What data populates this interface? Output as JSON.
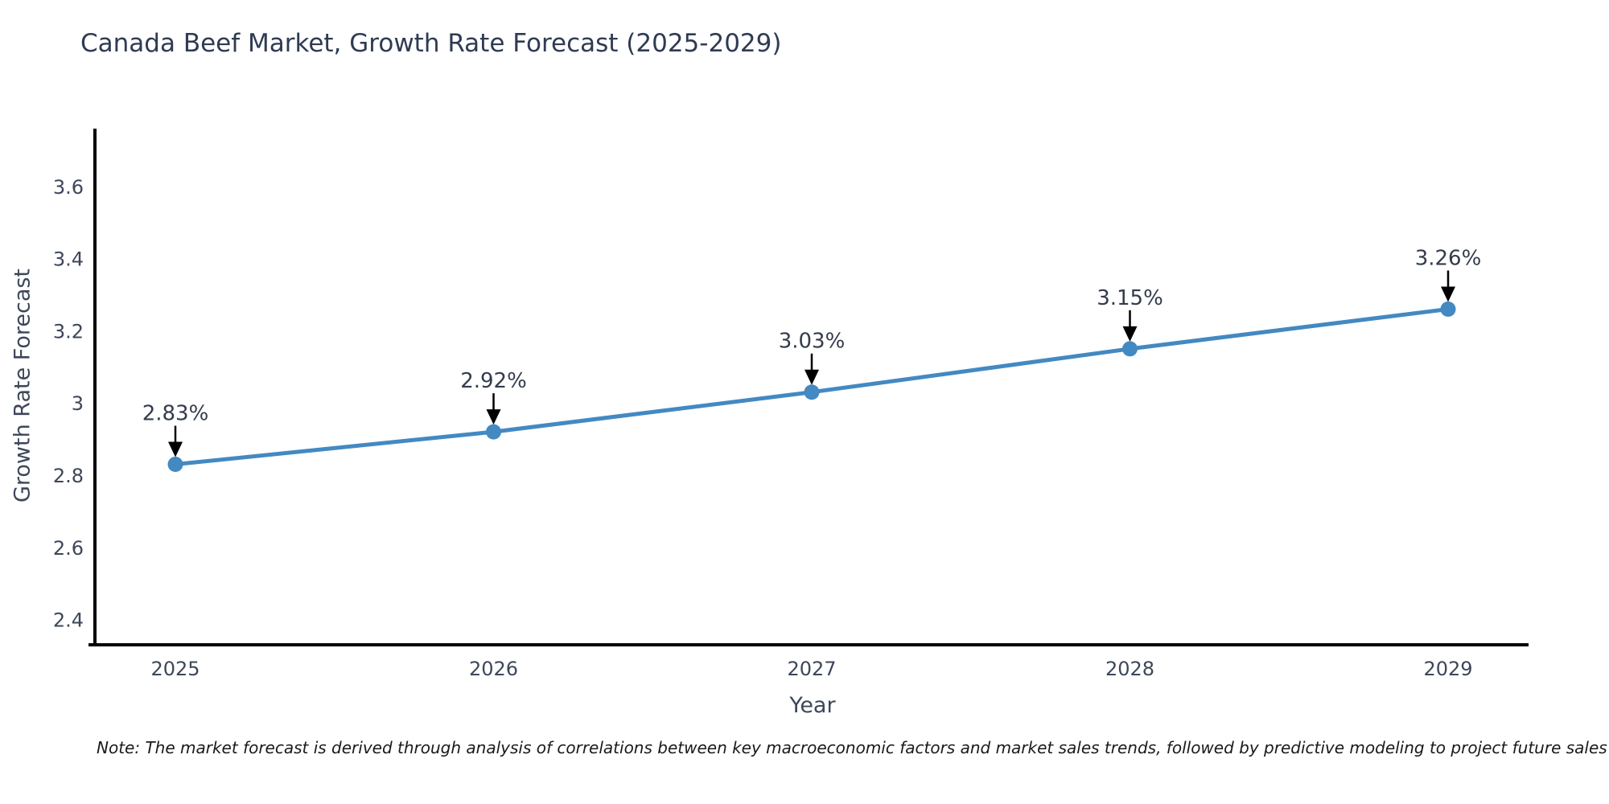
{
  "header": {
    "title": "Canada Beef Market, Growth Rate Forecast (2025-2029)"
  },
  "footer": {
    "note": "Note: The market forecast is derived through analysis of correlations between key macroeconomic factors and market sales trends, followed by predictive modeling to project future sales"
  },
  "chart_data": {
    "type": "line",
    "title": "Canada Beef Market, Growth Rate Forecast (2025-2029)",
    "xlabel": "Year",
    "ylabel": "Growth Rate Forecast",
    "categories": [
      "2025",
      "2026",
      "2027",
      "2028",
      "2029"
    ],
    "series": [
      {
        "name": "Growth Rate Forecast",
        "values": [
          2.83,
          2.92,
          3.03,
          3.15,
          3.26
        ],
        "point_labels": [
          "2.83%",
          "2.92%",
          "3.03%",
          "3.15%",
          "3.26%"
        ]
      }
    ],
    "yticks": [
      2.4,
      2.6,
      2.8,
      3,
      3.2,
      3.4,
      3.6
    ],
    "ylim": [
      2.33,
      3.76
    ],
    "grid": false,
    "legend_position": "none",
    "annotation_style": "value-label-with-down-arrow",
    "colors": {
      "line": "#4389c2",
      "marker": "#4389c2",
      "axis_line": "#000000",
      "title_text": "#2f3b52",
      "tick_text": "#3d4759",
      "annotation_text": "#333c4c",
      "arrow": "#000000",
      "note_text": "#1a1a1a",
      "background": "#ffffff"
    }
  }
}
